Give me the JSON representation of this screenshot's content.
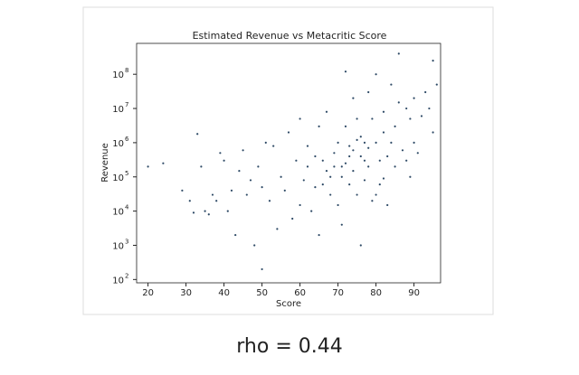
{
  "chart_data": {
    "type": "scatter",
    "title": "Estimated Revenue vs Metacritic Score",
    "x_label": "Score",
    "y_label": "Revenue",
    "annotation": "rho = 0.44",
    "color": "#2e4a66",
    "log_y": true,
    "xlim": [
      17,
      97
    ],
    "ylim": [
      80,
      800000000
    ],
    "xticks": [
      20,
      30,
      40,
      50,
      60,
      70,
      80,
      90
    ],
    "yticks": [
      {
        "value": 100,
        "label": "10",
        "exponent": "2"
      },
      {
        "value": 1000,
        "label": "10",
        "exponent": "3"
      },
      {
        "value": 10000,
        "label": "10",
        "exponent": "4"
      },
      {
        "value": 100000,
        "label": "10",
        "exponent": "5"
      },
      {
        "value": 1000000,
        "label": "10",
        "exponent": "6"
      },
      {
        "value": 10000000,
        "label": "10",
        "exponent": "7"
      },
      {
        "value": 100000000,
        "label": "10",
        "exponent": "8"
      }
    ],
    "x": [
      20,
      24,
      29,
      31,
      32,
      33,
      34,
      35,
      36,
      37,
      38,
      39,
      40,
      41,
      42,
      43,
      44,
      45,
      46,
      47,
      48,
      49,
      50,
      50,
      51,
      52,
      53,
      54,
      55,
      56,
      57,
      58,
      59,
      60,
      60,
      61,
      62,
      63,
      64,
      65,
      65,
      66,
      67,
      67,
      68,
      69,
      70,
      70,
      71,
      71,
      72,
      72,
      73,
      73,
      74,
      74,
      75,
      75,
      76,
      76,
      77,
      77,
      78,
      78,
      79,
      79,
      80,
      80,
      81,
      81,
      82,
      82,
      83,
      83,
      84,
      84,
      85,
      85,
      86,
      86,
      87,
      88,
      88,
      89,
      89,
      90,
      90,
      91,
      92,
      93,
      94,
      95,
      95,
      96,
      71,
      72,
      73,
      74,
      76,
      77,
      78,
      69,
      68,
      66,
      64,
      62,
      75,
      80,
      82
    ],
    "values": [
      200000,
      250000,
      40000,
      20000,
      9000,
      1800000,
      200000,
      10000,
      8000,
      30000,
      20000,
      500000,
      300000,
      10000,
      40000,
      2000,
      150000,
      600000,
      30000,
      80000,
      1000,
      200000,
      200,
      50000,
      1000000,
      20000,
      800000,
      3000,
      100000,
      40000,
      2000000,
      6000,
      300000,
      15000,
      5000000,
      80000,
      200000,
      10000,
      400000,
      3000000,
      2000,
      60000,
      150000,
      8000000,
      30000,
      500000,
      1000000,
      15000,
      200000,
      4000,
      3000000,
      120000000,
      60000,
      800000,
      20000000,
      150000,
      30000,
      5000000,
      400000,
      1000,
      1000000,
      80000,
      200000,
      30000000,
      5000000,
      20000,
      1000000,
      100000000,
      300000,
      60000,
      8000000,
      2000000,
      400000,
      15000,
      50000000,
      1000000,
      3000000,
      200000,
      400000000,
      15000000,
      600000,
      10000000,
      300000,
      5000000,
      100000,
      20000000,
      1000000,
      500000,
      6000000,
      30000000,
      10000000,
      250000000,
      2000000,
      50000000,
      100000,
      250000,
      400000,
      600000,
      1500000,
      300000,
      700000,
      200000,
      100000,
      300000,
      50000,
      800000,
      1200000,
      30000,
      90000
    ]
  }
}
